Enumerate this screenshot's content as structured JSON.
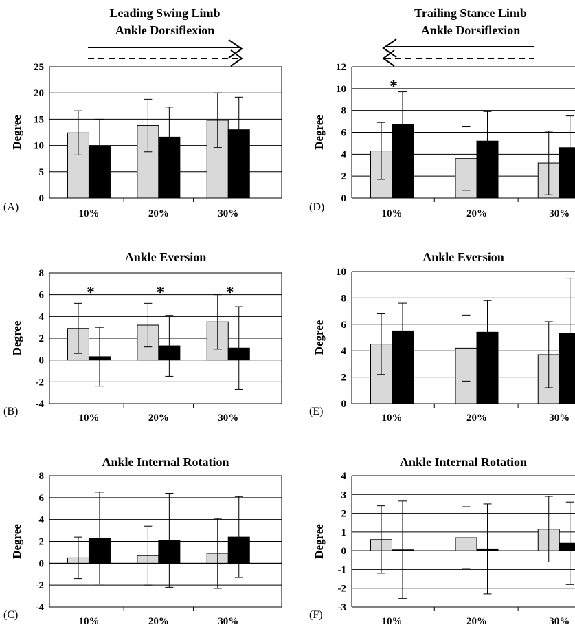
{
  "header": {
    "left_title": [
      "Leading Swing Limb",
      "Ankle Dorsiflexion"
    ],
    "right_title": [
      "Trailing Stance Limb",
      "Ankle Dorsiflexion"
    ]
  },
  "colors": {
    "series1": "#d9d9d9",
    "series2": "#000000",
    "grid": "#000000"
  },
  "chart_data": [
    {
      "type": "bar",
      "panel": "(A)",
      "title": "",
      "ylabel": "Degree",
      "categories": [
        "10%",
        "20%",
        "30%"
      ],
      "ylim": [
        0,
        25
      ],
      "yticks": [
        0,
        5,
        10,
        15,
        20,
        25
      ],
      "series": [
        {
          "values": [
            12.4,
            13.8,
            14.8
          ],
          "error": [
            4.2,
            5.0,
            5.2
          ]
        },
        {
          "values": [
            9.8,
            11.6,
            13.0
          ],
          "error": [
            5.2,
            5.7,
            6.2
          ]
        }
      ],
      "annotations": []
    },
    {
      "type": "bar",
      "panel": "(B)",
      "title": "Ankle Eversion",
      "ylabel": "Degree",
      "categories": [
        "10%",
        "20%",
        "30%"
      ],
      "ylim": [
        -4,
        8
      ],
      "yticks": [
        -4,
        -2,
        0,
        2,
        4,
        6,
        8
      ],
      "series": [
        {
          "values": [
            2.9,
            3.2,
            3.5
          ],
          "error": [
            2.3,
            2.0,
            2.5
          ]
        },
        {
          "values": [
            0.3,
            1.3,
            1.1
          ],
          "error": [
            2.7,
            2.8,
            3.8
          ]
        }
      ],
      "annotations": [
        "*",
        "*",
        "*"
      ]
    },
    {
      "type": "bar",
      "panel": "(C)",
      "title": "Ankle Internal Rotation",
      "ylabel": "Degree",
      "categories": [
        "10%",
        "20%",
        "30%"
      ],
      "ylim": [
        -4,
        8
      ],
      "yticks": [
        -4,
        -2,
        0,
        2,
        4,
        6,
        8
      ],
      "series": [
        {
          "values": [
            0.5,
            0.7,
            0.9
          ],
          "error": [
            1.9,
            2.7,
            3.2
          ]
        },
        {
          "values": [
            2.3,
            2.1,
            2.4
          ],
          "error": [
            4.2,
            4.3,
            3.7
          ]
        }
      ],
      "annotations": []
    },
    {
      "type": "bar",
      "panel": "(D)",
      "title": "",
      "ylabel": "Degree",
      "categories": [
        "10%",
        "20%",
        "30%"
      ],
      "ylim": [
        0,
        12
      ],
      "yticks": [
        0,
        2,
        4,
        6,
        8,
        10,
        12
      ],
      "series": [
        {
          "values": [
            4.3,
            3.6,
            3.2
          ],
          "error": [
            2.6,
            2.9,
            2.9
          ]
        },
        {
          "values": [
            6.7,
            5.2,
            4.6
          ],
          "error": [
            3.0,
            2.7,
            2.9
          ]
        }
      ],
      "annotations": [
        "*",
        "",
        ""
      ]
    },
    {
      "type": "bar",
      "panel": "(E)",
      "title": "Ankle Eversion",
      "ylabel": "Degree",
      "categories": [
        "10%",
        "20%",
        "30%"
      ],
      "ylim": [
        0,
        10
      ],
      "yticks": [
        0,
        2,
        4,
        6,
        8,
        10
      ],
      "series": [
        {
          "values": [
            4.5,
            4.2,
            3.7
          ],
          "error": [
            2.3,
            2.5,
            2.5
          ]
        },
        {
          "values": [
            5.5,
            5.4,
            5.3
          ],
          "error": [
            2.1,
            2.4,
            4.2
          ]
        }
      ],
      "annotations": []
    },
    {
      "type": "bar",
      "panel": "(F)",
      "title": "Ankle Internal Rotation",
      "ylabel": "Degree",
      "categories": [
        "10%",
        "20%",
        "30%"
      ],
      "ylim": [
        -3,
        4
      ],
      "yticks": [
        -3,
        -2,
        -1,
        0,
        1,
        2,
        3,
        4
      ],
      "series": [
        {
          "values": [
            0.6,
            0.7,
            1.15
          ],
          "error": [
            1.8,
            1.65,
            1.75
          ]
        },
        {
          "values": [
            0.05,
            0.1,
            0.4
          ],
          "error": [
            2.6,
            2.4,
            2.2
          ]
        }
      ],
      "annotations": []
    }
  ]
}
